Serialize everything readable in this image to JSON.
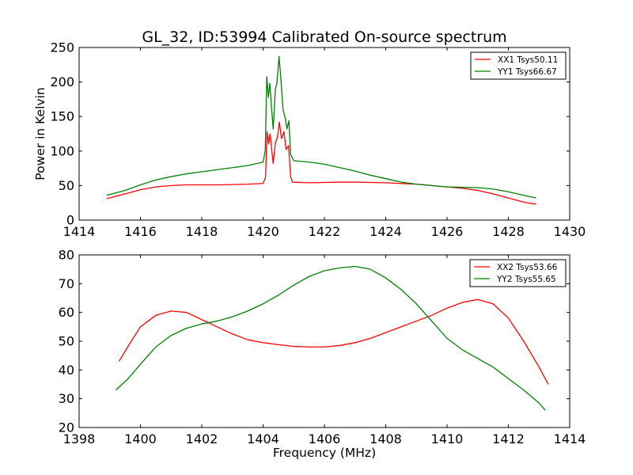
{
  "chart_data": [
    {
      "type": "line",
      "title": "GL_32, ID:53994 Calibrated On-source spectrum",
      "xlabel": "",
      "ylabel": "Power in Kelvin",
      "xlim": [
        1414,
        1430
      ],
      "ylim": [
        0,
        250
      ],
      "xticks": [
        "1414",
        "1416",
        "1418",
        "1420",
        "1422",
        "1424",
        "1426",
        "1428",
        "1430"
      ],
      "yticks": [
        "0",
        "50",
        "100",
        "150",
        "200",
        "250"
      ],
      "grid": false,
      "legend": "top-right",
      "series": [
        {
          "name": "XX1 Tsys50.11",
          "color": "#ff0000",
          "points": [
            [
              1414.9,
              31
            ],
            [
              1415.5,
              38
            ],
            [
              1416.0,
              44
            ],
            [
              1416.5,
              48
            ],
            [
              1417.0,
              50
            ],
            [
              1417.5,
              51
            ],
            [
              1418.0,
              51
            ],
            [
              1418.5,
              51
            ],
            [
              1419.0,
              51.5
            ],
            [
              1419.5,
              52
            ],
            [
              1420.0,
              53
            ],
            [
              1420.08,
              62
            ],
            [
              1420.13,
              128
            ],
            [
              1420.18,
              110
            ],
            [
              1420.23,
              125
            ],
            [
              1420.28,
              102
            ],
            [
              1420.33,
              82
            ],
            [
              1420.4,
              112
            ],
            [
              1420.47,
              120
            ],
            [
              1420.53,
              142
            ],
            [
              1420.6,
              118
            ],
            [
              1420.68,
              128
            ],
            [
              1420.75,
              102
            ],
            [
              1420.83,
              108
            ],
            [
              1420.9,
              62
            ],
            [
              1420.96,
              55
            ],
            [
              1421.5,
              54
            ],
            [
              1422.0,
              54.5
            ],
            [
              1422.5,
              55
            ],
            [
              1423.0,
              55
            ],
            [
              1423.5,
              54.5
            ],
            [
              1424.0,
              54
            ],
            [
              1424.5,
              53
            ],
            [
              1425.0,
              52
            ],
            [
              1425.5,
              50
            ],
            [
              1426.0,
              48
            ],
            [
              1426.5,
              46
            ],
            [
              1427.0,
              43
            ],
            [
              1427.5,
              38
            ],
            [
              1428.0,
              32
            ],
            [
              1428.5,
              26
            ],
            [
              1428.9,
              23
            ]
          ]
        },
        {
          "name": "YY1 Tsys66.67",
          "color": "#008000",
          "points": [
            [
              1414.9,
              36
            ],
            [
              1415.5,
              43
            ],
            [
              1416.0,
              51
            ],
            [
              1416.5,
              58
            ],
            [
              1417.0,
              63
            ],
            [
              1417.5,
              67
            ],
            [
              1418.0,
              70
            ],
            [
              1418.5,
              73
            ],
            [
              1419.0,
              76
            ],
            [
              1419.5,
              79
            ],
            [
              1420.0,
              84
            ],
            [
              1420.07,
              100
            ],
            [
              1420.12,
              208
            ],
            [
              1420.17,
              178
            ],
            [
              1420.22,
              198
            ],
            [
              1420.28,
              160
            ],
            [
              1420.33,
              132
            ],
            [
              1420.4,
              190
            ],
            [
              1420.45,
              198
            ],
            [
              1420.52,
              237
            ],
            [
              1420.58,
              205
            ],
            [
              1420.65,
              160
            ],
            [
              1420.72,
              148
            ],
            [
              1420.78,
              132
            ],
            [
              1420.84,
              144
            ],
            [
              1420.9,
              95
            ],
            [
              1421.0,
              86
            ],
            [
              1421.5,
              84
            ],
            [
              1422.0,
              81
            ],
            [
              1422.5,
              76
            ],
            [
              1423.0,
              71
            ],
            [
              1423.5,
              65
            ],
            [
              1424.0,
              60
            ],
            [
              1424.5,
              55
            ],
            [
              1425.0,
              52
            ],
            [
              1425.5,
              50
            ],
            [
              1426.0,
              48
            ],
            [
              1426.5,
              47.5
            ],
            [
              1427.0,
              47
            ],
            [
              1427.5,
              45
            ],
            [
              1428.0,
              41
            ],
            [
              1428.5,
              36
            ],
            [
              1428.9,
              32
            ]
          ]
        }
      ]
    },
    {
      "type": "line",
      "title": "",
      "xlabel": "Frequency (MHz)",
      "ylabel": "",
      "xlim": [
        1398,
        1414
      ],
      "ylim": [
        20,
        80
      ],
      "xticks": [
        "1398",
        "1400",
        "1402",
        "1404",
        "1406",
        "1408",
        "1410",
        "1412",
        "1414"
      ],
      "yticks": [
        "20",
        "30",
        "40",
        "50",
        "60",
        "70",
        "80"
      ],
      "grid": false,
      "legend": "top-right",
      "series": [
        {
          "name": "XX2 Tsys53.66",
          "color": "#ff0000",
          "points": [
            [
              1399.3,
              43
            ],
            [
              1399.7,
              50
            ],
            [
              1400.0,
              55
            ],
            [
              1400.5,
              59
            ],
            [
              1401.0,
              60.5
            ],
            [
              1401.5,
              60
            ],
            [
              1402.0,
              57.5
            ],
            [
              1402.5,
              55
            ],
            [
              1403.0,
              52.5
            ],
            [
              1403.5,
              50.5
            ],
            [
              1404.0,
              49.5
            ],
            [
              1404.5,
              48.8
            ],
            [
              1405.0,
              48.2
            ],
            [
              1405.5,
              48
            ],
            [
              1406.0,
              48
            ],
            [
              1406.5,
              48.5
            ],
            [
              1407.0,
              49.5
            ],
            [
              1407.5,
              51
            ],
            [
              1408.0,
              53
            ],
            [
              1408.5,
              55
            ],
            [
              1409.0,
              57
            ],
            [
              1409.5,
              59
            ],
            [
              1410.0,
              61.5
            ],
            [
              1410.5,
              63.5
            ],
            [
              1411.0,
              64.5
            ],
            [
              1411.5,
              63
            ],
            [
              1412.0,
              58
            ],
            [
              1412.5,
              50
            ],
            [
              1413.0,
              41
            ],
            [
              1413.3,
              35
            ]
          ]
        },
        {
          "name": "YY2 Tsys55.65",
          "color": "#008000",
          "points": [
            [
              1399.2,
              33
            ],
            [
              1399.6,
              37
            ],
            [
              1400.0,
              42
            ],
            [
              1400.5,
              48
            ],
            [
              1401.0,
              52
            ],
            [
              1401.5,
              54.5
            ],
            [
              1402.0,
              56
            ],
            [
              1402.5,
              57
            ],
            [
              1403.0,
              58.5
            ],
            [
              1403.5,
              60.5
            ],
            [
              1404.0,
              63
            ],
            [
              1404.5,
              66
            ],
            [
              1405.0,
              69.5
            ],
            [
              1405.5,
              72.5
            ],
            [
              1406.0,
              74.5
            ],
            [
              1406.5,
              75.5
            ],
            [
              1407.0,
              76
            ],
            [
              1407.5,
              75
            ],
            [
              1408.0,
              72
            ],
            [
              1408.5,
              68
            ],
            [
              1409.0,
              63
            ],
            [
              1409.5,
              57
            ],
            [
              1410.0,
              51
            ],
            [
              1410.5,
              47
            ],
            [
              1411.0,
              44
            ],
            [
              1411.5,
              41
            ],
            [
              1412.0,
              37
            ],
            [
              1412.5,
              33
            ],
            [
              1413.0,
              28.5
            ],
            [
              1413.2,
              26
            ]
          ]
        }
      ]
    }
  ]
}
